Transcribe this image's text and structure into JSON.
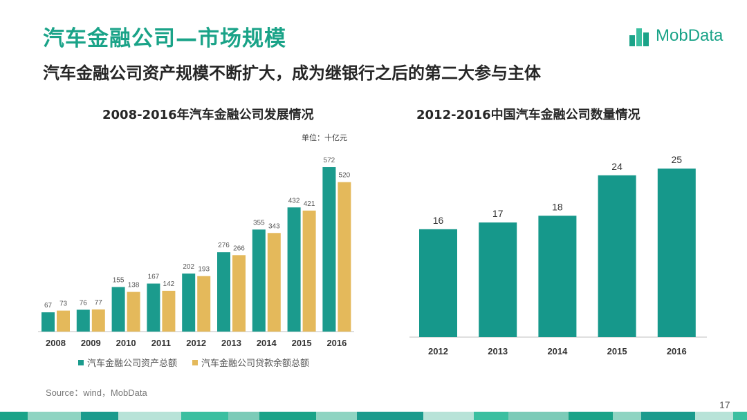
{
  "slide": {
    "title": "汽车金融公司—市场规模",
    "subtitle": "汽车金融公司资产规模不断扩大，成为继银行之后的第二大参与主体",
    "logo_text": "MobData",
    "source": "Source：wind，MobData",
    "page_number": "17",
    "colors": {
      "teal": "#1b9b8d",
      "gold": "#e4b95b",
      "title_green": "#1aa388"
    }
  },
  "chart_data": [
    {
      "type": "bar",
      "title": "2008-2016年汽车金融公司发展情况",
      "unit": "单位：十亿元",
      "categories": [
        "2008",
        "2009",
        "2010",
        "2011",
        "2012",
        "2013",
        "2014",
        "2015",
        "2016"
      ],
      "series": [
        {
          "name": "汽车金融公司资产总额",
          "color": "#1b9b8d",
          "values": [
            67,
            76,
            155,
            167,
            202,
            276,
            355,
            432,
            572
          ]
        },
        {
          "name": "汽车金融公司贷款余额总额",
          "color": "#e4b95b",
          "values": [
            73,
            77,
            138,
            142,
            193,
            266,
            343,
            421,
            520
          ]
        }
      ],
      "legend_position": "bottom",
      "grid": false
    },
    {
      "type": "bar",
      "title": "2012-2016中国汽车金融公司数量情况",
      "categories": [
        "2012",
        "2013",
        "2014",
        "2015",
        "2016"
      ],
      "series": [
        {
          "color": "#16988b",
          "values": [
            16,
            17,
            18,
            24,
            25
          ]
        }
      ],
      "grid": false
    }
  ]
}
